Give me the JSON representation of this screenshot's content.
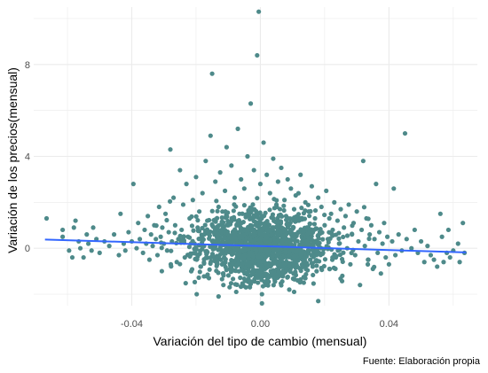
{
  "chart_data": {
    "type": "scatter",
    "xlabel": "Variación del tipo de cambio (mensual)",
    "ylabel": "Variación de los precios(mensual)",
    "caption": "Fuente: Elaboración propia",
    "xlim": [
      -0.0705,
      0.0675
    ],
    "ylim": [
      -2.5,
      10.5
    ],
    "x_ticks": [
      {
        "value": -0.04,
        "label": "-0.04"
      },
      {
        "value": 0.0,
        "label": "0.00"
      },
      {
        "value": 0.04,
        "label": "0.04"
      }
    ],
    "y_ticks": [
      {
        "value": 0,
        "label": "0"
      },
      {
        "value": 4,
        "label": "4"
      },
      {
        "value": 8,
        "label": "8"
      }
    ],
    "x_minor_ticks": [
      -0.06,
      -0.02,
      0.02,
      0.06
    ],
    "y_minor_ticks": [
      -2,
      2,
      6,
      10
    ],
    "grid": true,
    "point_color": "#4E8A8A",
    "line_color": "#3366FF",
    "gridline_color": "#EBEBEB",
    "trend_line": {
      "x": [
        -0.067,
        0.064
      ],
      "y": [
        0.38,
        -0.18
      ]
    },
    "points": [
      {
        "x": -0.0665,
        "y": 1.3
      },
      {
        "x": -0.0615,
        "y": 0.5
      },
      {
        "x": -0.0615,
        "y": 0.8
      },
      {
        "x": -0.0595,
        "y": -0.1
      },
      {
        "x": -0.0585,
        "y": -0.4
      },
      {
        "x": -0.058,
        "y": 0.9
      },
      {
        "x": -0.0575,
        "y": 1.2
      },
      {
        "x": -0.0565,
        "y": 0.3
      },
      {
        "x": -0.056,
        "y": 0.0
      },
      {
        "x": -0.055,
        "y": -0.4
      },
      {
        "x": -0.054,
        "y": 0.6
      },
      {
        "x": -0.0535,
        "y": 0.2
      },
      {
        "x": -0.0525,
        "y": -0.1
      },
      {
        "x": -0.052,
        "y": 0.9
      },
      {
        "x": -0.051,
        "y": 0.4
      },
      {
        "x": -0.05,
        "y": -0.2
      },
      {
        "x": -0.0485,
        "y": 0.3
      },
      {
        "x": -0.047,
        "y": 0.1
      },
      {
        "x": -0.0455,
        "y": 0.6
      },
      {
        "x": -0.044,
        "y": -0.3
      },
      {
        "x": -0.0435,
        "y": 1.5
      },
      {
        "x": -0.0425,
        "y": 0.2
      },
      {
        "x": -0.042,
        "y": -0.1
      },
      {
        "x": -0.041,
        "y": 0.7
      },
      {
        "x": -0.04,
        "y": 0.3
      },
      {
        "x": -0.0395,
        "y": 2.8
      },
      {
        "x": -0.0385,
        "y": 0.0
      },
      {
        "x": -0.038,
        "y": 1.1
      },
      {
        "x": -0.0375,
        "y": 0.4
      },
      {
        "x": -0.0365,
        "y": -0.2
      },
      {
        "x": -0.036,
        "y": 0.8
      },
      {
        "x": -0.0355,
        "y": 0.2
      },
      {
        "x": -0.035,
        "y": 1.4
      },
      {
        "x": -0.0345,
        "y": -0.5
      },
      {
        "x": -0.034,
        "y": 0.6
      },
      {
        "x": -0.0335,
        "y": 0.1
      },
      {
        "x": -0.033,
        "y": 1.0
      },
      {
        "x": -0.0325,
        "y": 0.4
      },
      {
        "x": -0.032,
        "y": -0.3
      },
      {
        "x": -0.0315,
        "y": 1.8
      },
      {
        "x": -0.031,
        "y": 0.5
      },
      {
        "x": -0.0305,
        "y": 0.9
      },
      {
        "x": -0.03,
        "y": 0.2
      },
      {
        "x": -0.0295,
        "y": 1.5
      },
      {
        "x": -0.029,
        "y": -0.1
      },
      {
        "x": -0.0285,
        "y": 0.7
      },
      {
        "x": -0.028,
        "y": 4.3
      },
      {
        "x": -0.0275,
        "y": 0.3
      },
      {
        "x": -0.027,
        "y": 2.2
      },
      {
        "x": -0.0265,
        "y": 1.0
      },
      {
        "x": -0.026,
        "y": -0.6
      },
      {
        "x": -0.0255,
        "y": 0.4
      },
      {
        "x": -0.025,
        "y": 3.4
      },
      {
        "x": -0.0245,
        "y": 0.8
      },
      {
        "x": -0.024,
        "y": 1.9
      },
      {
        "x": -0.0235,
        "y": -0.4
      },
      {
        "x": -0.023,
        "y": 2.8
      },
      {
        "x": -0.0225,
        "y": 0.5
      },
      {
        "x": -0.022,
        "y": 1.3
      },
      {
        "x": -0.0215,
        "y": -1.0
      },
      {
        "x": -0.021,
        "y": 2.1
      },
      {
        "x": -0.0205,
        "y": 0.2
      },
      {
        "x": -0.02,
        "y": 3.1
      },
      {
        "x": -0.0198,
        "y": -2.0
      },
      {
        "x": -0.0195,
        "y": 0.9
      },
      {
        "x": -0.019,
        "y": 1.6
      },
      {
        "x": -0.0185,
        "y": -0.8
      },
      {
        "x": -0.018,
        "y": 2.4
      },
      {
        "x": -0.0175,
        "y": 0.1
      },
      {
        "x": -0.017,
        "y": 3.8
      },
      {
        "x": -0.0165,
        "y": 1.2
      },
      {
        "x": -0.016,
        "y": -1.3
      },
      {
        "x": -0.0155,
        "y": 4.9
      },
      {
        "x": -0.015,
        "y": 7.6
      },
      {
        "x": -0.0145,
        "y": 0.7
      },
      {
        "x": -0.014,
        "y": 2.9
      },
      {
        "x": -0.0135,
        "y": -0.6
      },
      {
        "x": -0.013,
        "y": 1.8
      },
      {
        "x": -0.0125,
        "y": 3.3
      },
      {
        "x": -0.012,
        "y": 0.4
      },
      {
        "x": -0.0115,
        "y": -1.6
      },
      {
        "x": -0.011,
        "y": 2.5
      },
      {
        "x": -0.0105,
        "y": 4.4
      },
      {
        "x": -0.01,
        "y": 1.0
      },
      {
        "x": -0.0095,
        "y": -0.9
      },
      {
        "x": -0.009,
        "y": 3.6
      },
      {
        "x": -0.0085,
        "y": 0.3
      },
      {
        "x": -0.008,
        "y": 2.2
      },
      {
        "x": -0.0075,
        "y": -1.9
      },
      {
        "x": -0.007,
        "y": 5.2
      },
      {
        "x": -0.0065,
        "y": 1.5
      },
      {
        "x": -0.006,
        "y": 3.0
      },
      {
        "x": -0.0055,
        "y": -0.4
      },
      {
        "x": -0.005,
        "y": 2.6
      },
      {
        "x": -0.0045,
        "y": 0.8
      },
      {
        "x": -0.004,
        "y": 4.0
      },
      {
        "x": -0.0035,
        "y": -1.2
      },
      {
        "x": -0.003,
        "y": 6.3
      },
      {
        "x": -0.0025,
        "y": 1.7
      },
      {
        "x": -0.002,
        "y": 3.4
      },
      {
        "x": -0.0015,
        "y": 0.2
      },
      {
        "x": -0.001,
        "y": 8.4
      },
      {
        "x": -0.0005,
        "y": 10.3
      },
      {
        "x": 0.0,
        "y": 2.8
      },
      {
        "x": 0.0005,
        "y": -2.0
      },
      {
        "x": 0.001,
        "y": 4.6
      },
      {
        "x": 0.0015,
        "y": 1.1
      },
      {
        "x": 0.002,
        "y": 3.2
      },
      {
        "x": 0.0025,
        "y": -0.7
      },
      {
        "x": 0.003,
        "y": 2.4
      },
      {
        "x": 0.0035,
        "y": 0.6
      },
      {
        "x": 0.004,
        "y": 3.9
      },
      {
        "x": 0.0045,
        "y": -1.4
      },
      {
        "x": 0.005,
        "y": 1.9
      },
      {
        "x": 0.0055,
        "y": 2.9
      },
      {
        "x": 0.006,
        "y": 0.0
      },
      {
        "x": 0.0065,
        "y": 3.5
      },
      {
        "x": 0.007,
        "y": -1.0
      },
      {
        "x": 0.0075,
        "y": 2.1
      },
      {
        "x": 0.008,
        "y": 1.4
      },
      {
        "x": 0.0085,
        "y": 3.0
      },
      {
        "x": 0.009,
        "y": -1.8
      },
      {
        "x": 0.0095,
        "y": 2.6
      },
      {
        "x": 0.01,
        "y": 0.5
      },
      {
        "x": 0.0105,
        "y": 1.7
      },
      {
        "x": 0.011,
        "y": 2.3
      },
      {
        "x": 0.0115,
        "y": -0.8
      },
      {
        "x": 0.012,
        "y": 1.2
      },
      {
        "x": 0.0125,
        "y": 3.2
      },
      {
        "x": 0.013,
        "y": 0.3
      },
      {
        "x": 0.0135,
        "y": -1.5
      },
      {
        "x": 0.014,
        "y": 2.0
      },
      {
        "x": 0.0145,
        "y": 0.9
      },
      {
        "x": 0.015,
        "y": 1.6
      },
      {
        "x": 0.0155,
        "y": -0.5
      },
      {
        "x": 0.016,
        "y": 2.7
      },
      {
        "x": 0.0165,
        "y": 0.1
      },
      {
        "x": 0.017,
        "y": 1.3
      },
      {
        "x": 0.0175,
        "y": -1.0
      },
      {
        "x": 0.018,
        "y": 2.2
      },
      {
        "x": 0.0185,
        "y": 0.7
      },
      {
        "x": 0.019,
        "y": 1.8
      },
      {
        "x": 0.0195,
        "y": -0.2
      },
      {
        "x": 0.02,
        "y": 1.0
      },
      {
        "x": 0.0205,
        "y": 2.5
      },
      {
        "x": 0.021,
        "y": 0.4
      },
      {
        "x": 0.0215,
        "y": -0.9
      },
      {
        "x": 0.022,
        "y": 1.5
      },
      {
        "x": 0.0225,
        "y": 0.8
      },
      {
        "x": 0.023,
        "y": 2.0
      },
      {
        "x": 0.0235,
        "y": -0.4
      },
      {
        "x": 0.024,
        "y": 1.2
      },
      {
        "x": 0.0245,
        "y": 0.2
      },
      {
        "x": 0.025,
        "y": 1.7
      },
      {
        "x": 0.0255,
        "y": -1.2
      },
      {
        "x": 0.026,
        "y": 0.9
      },
      {
        "x": 0.0265,
        "y": 1.4
      },
      {
        "x": 0.027,
        "y": 0.0
      },
      {
        "x": 0.0275,
        "y": 1.9
      },
      {
        "x": 0.028,
        "y": -0.7
      },
      {
        "x": 0.0285,
        "y": 0.6
      },
      {
        "x": 0.029,
        "y": 1.1
      },
      {
        "x": 0.0295,
        "y": -0.3
      },
      {
        "x": 0.03,
        "y": 1.6
      },
      {
        "x": 0.0305,
        "y": 0.3
      },
      {
        "x": 0.031,
        "y": -1.6
      },
      {
        "x": 0.0315,
        "y": 0.8
      },
      {
        "x": 0.032,
        "y": 3.8
      },
      {
        "x": 0.0325,
        "y": 0.1
      },
      {
        "x": 0.033,
        "y": 1.3
      },
      {
        "x": 0.0335,
        "y": -0.5
      },
      {
        "x": 0.034,
        "y": 0.6
      },
      {
        "x": 0.0345,
        "y": 1.0
      },
      {
        "x": 0.035,
        "y": -0.9
      },
      {
        "x": 0.0355,
        "y": 0.4
      },
      {
        "x": 0.036,
        "y": 2.8
      },
      {
        "x": 0.0365,
        "y": -0.2
      },
      {
        "x": 0.037,
        "y": 0.7
      },
      {
        "x": 0.0375,
        "y": -1.1
      },
      {
        "x": 0.038,
        "y": 0.2
      },
      {
        "x": 0.0385,
        "y": 1.1
      },
      {
        "x": 0.039,
        "y": -0.4
      },
      {
        "x": 0.0395,
        "y": 0.5
      },
      {
        "x": 0.04,
        "y": -0.7
      },
      {
        "x": 0.041,
        "y": 0.3
      },
      {
        "x": 0.0415,
        "y": 2.6
      },
      {
        "x": 0.042,
        "y": -0.3
      },
      {
        "x": 0.043,
        "y": 0.6
      },
      {
        "x": 0.044,
        "y": -0.1
      },
      {
        "x": 0.045,
        "y": 5.0
      },
      {
        "x": 0.0455,
        "y": 0.4
      },
      {
        "x": 0.047,
        "y": 0.0
      },
      {
        "x": 0.048,
        "y": 0.8
      },
      {
        "x": 0.049,
        "y": -0.2
      },
      {
        "x": 0.05,
        "y": 0.3
      },
      {
        "x": 0.051,
        "y": -0.6
      },
      {
        "x": 0.052,
        "y": 0.1
      },
      {
        "x": 0.053,
        "y": -0.3
      },
      {
        "x": 0.054,
        "y": -0.5
      },
      {
        "x": 0.055,
        "y": -0.8
      },
      {
        "x": 0.056,
        "y": 1.5
      },
      {
        "x": 0.0565,
        "y": 0.5
      },
      {
        "x": 0.057,
        "y": -0.6
      },
      {
        "x": 0.058,
        "y": -0.2
      },
      {
        "x": 0.0585,
        "y": 0.8
      },
      {
        "x": 0.059,
        "y": -0.4
      },
      {
        "x": 0.06,
        "y": -0.1
      },
      {
        "x": 0.0615,
        "y": 0.2
      },
      {
        "x": 0.062,
        "y": -0.6
      },
      {
        "x": 0.063,
        "y": 1.1
      },
      {
        "x": 0.0635,
        "y": -0.2
      },
      {
        "x": 0.0005,
        "y": -2.4
      },
      {
        "x": 0.018,
        "y": -2.3
      },
      {
        "x": -0.013,
        "y": -2.1
      },
      {
        "x": 0.0105,
        "y": -1.9
      },
      {
        "x": -0.0045,
        "y": -1.7
      }
    ],
    "cloud": {
      "x_center": 0.0,
      "x_sd": 0.0105,
      "y_center": 0.1,
      "y_sd": 0.75,
      "count": 1400
    }
  }
}
